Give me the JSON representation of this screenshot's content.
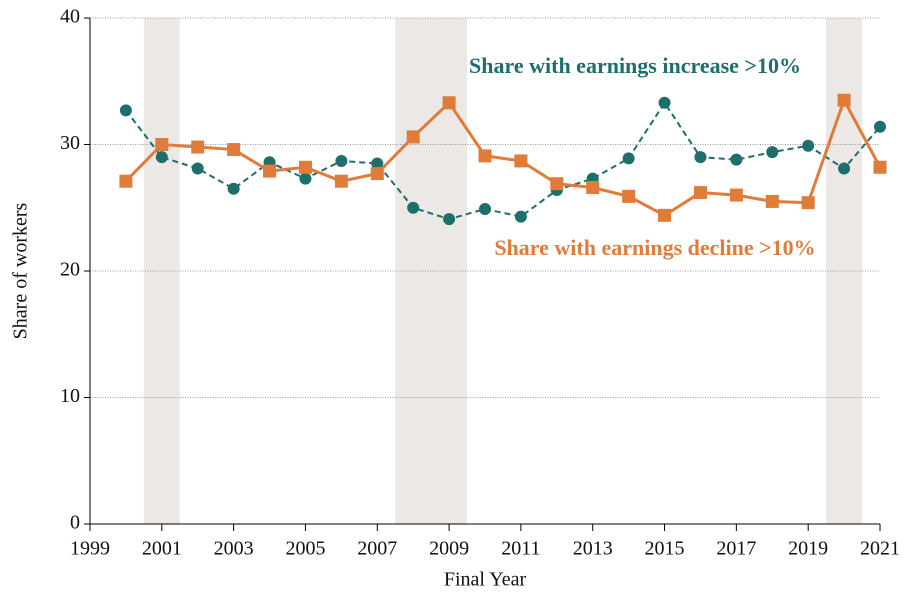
{
  "chart_data": {
    "type": "line",
    "x_label": "Final Year",
    "y_label": "Share of workers",
    "x": [
      2000,
      2001,
      2002,
      2003,
      2004,
      2005,
      2006,
      2007,
      2008,
      2009,
      2010,
      2011,
      2012,
      2013,
      2014,
      2015,
      2016,
      2017,
      2018,
      2019,
      2020,
      2021
    ],
    "series": [
      {
        "name": "Share with earnings increase >10%",
        "color": "#1e6e6b",
        "line_style": "dashed",
        "marker": "circle",
        "values": [
          32.7,
          29.0,
          28.1,
          26.5,
          28.6,
          27.3,
          28.7,
          28.5,
          25.0,
          24.1,
          24.9,
          24.3,
          26.4,
          27.3,
          28.9,
          33.3,
          29.0,
          28.8,
          29.4,
          29.9,
          28.1,
          31.4
        ]
      },
      {
        "name": "Share with earnings decline >10%",
        "color": "#e07b39",
        "line_style": "solid",
        "marker": "square",
        "values": [
          27.1,
          30.0,
          29.8,
          29.6,
          27.9,
          28.2,
          27.1,
          27.7,
          30.6,
          33.3,
          29.1,
          28.7,
          26.9,
          26.6,
          25.9,
          24.4,
          26.2,
          26.0,
          25.5,
          25.4,
          33.5,
          28.2
        ]
      }
    ],
    "shaded_ranges": [
      [
        2000.5,
        2001.5
      ],
      [
        2007.5,
        2009.5
      ],
      [
        2019.5,
        2020.5
      ]
    ],
    "shade_color": "#ebe8e6",
    "xlim": [
      1999,
      2021
    ],
    "xticks": [
      1999,
      2001,
      2003,
      2005,
      2007,
      2009,
      2011,
      2013,
      2015,
      2017,
      2019,
      2021
    ],
    "ylim": [
      0,
      40
    ],
    "yticks": [
      0,
      10,
      20,
      30,
      40
    ],
    "grid": true
  }
}
